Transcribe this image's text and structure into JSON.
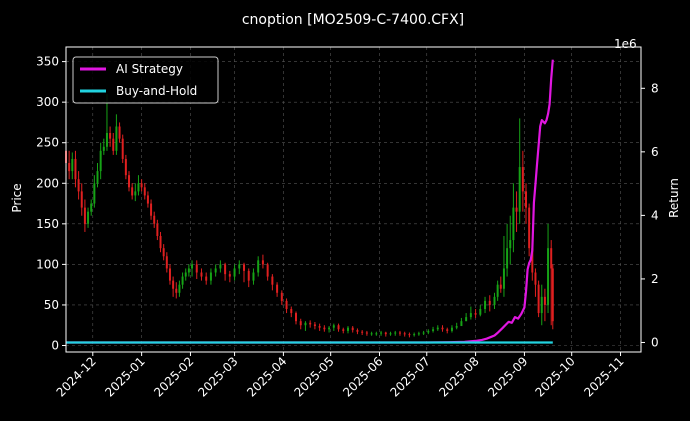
{
  "chart_data": {
    "type": "line",
    "title": "cnoption [MO2509-C-7400.CFX]",
    "xlabel": "",
    "ylabel": "Price",
    "y2label": "Return",
    "y2_offset_label": "1e6",
    "x_ticks": [
      "2024-12",
      "2025-01",
      "2025-02",
      "2025-03",
      "2025-04",
      "2025-05",
      "2025-06",
      "2025-07",
      "2025-08",
      "2025-09",
      "2025-10",
      "2025-11"
    ],
    "y_ticks": [
      0,
      50,
      100,
      150,
      200,
      250,
      300,
      350
    ],
    "y2_ticks": [
      0,
      2,
      4,
      6,
      8
    ],
    "xlim": [
      "2024-11-14",
      "2025-11-14"
    ],
    "ylim": [
      -8,
      368
    ],
    "y2lim": [
      -0.3,
      9.3
    ],
    "grid": true,
    "legend_position": "top-left",
    "background": "#000000",
    "series": [
      {
        "name": "AI Strategy",
        "color": "#e016e0",
        "axis": "right",
        "x": [
          "2024-11-14",
          "2025-07-01",
          "2025-07-15",
          "2025-07-25",
          "2025-08-01",
          "2025-08-05",
          "2025-08-08",
          "2025-08-11",
          "2025-08-13",
          "2025-08-15",
          "2025-08-18",
          "2025-08-20",
          "2025-08-22",
          "2025-08-24",
          "2025-08-26",
          "2025-08-28",
          "2025-08-30",
          "2025-09-01",
          "2025-09-02",
          "2025-09-03",
          "2025-09-04",
          "2025-09-05",
          "2025-09-06",
          "2025-09-07",
          "2025-09-08",
          "2025-09-09",
          "2025-09-10",
          "2025-09-11",
          "2025-09-12",
          "2025-09-14",
          "2025-09-15",
          "2025-09-16",
          "2025-09-17",
          "2025-09-18",
          "2025-09-19"
        ],
        "values": [
          0,
          0,
          0.01,
          0.02,
          0.05,
          0.08,
          0.12,
          0.18,
          0.22,
          0.3,
          0.45,
          0.55,
          0.65,
          0.62,
          0.8,
          0.75,
          0.9,
          1.1,
          1.6,
          2.3,
          2.5,
          2.6,
          2.9,
          4.4,
          5.0,
          5.6,
          6.2,
          6.8,
          7.0,
          6.9,
          7.0,
          7.2,
          7.5,
          8.3,
          8.9
        ]
      },
      {
        "name": "Buy-and-Hold",
        "color": "#22d3e0",
        "axis": "right",
        "x": [
          "2024-11-14",
          "2025-09-19"
        ],
        "values": [
          0,
          0
        ]
      }
    ],
    "price_candles": {
      "up_color": "#16a316",
      "down_color": "#e02020",
      "x": [
        "2024-11-14",
        "2024-11-16",
        "2024-11-18",
        "2024-11-20",
        "2024-11-22",
        "2024-11-24",
        "2024-11-26",
        "2024-11-28",
        "2024-11-30",
        "2024-12-02",
        "2024-12-04",
        "2024-12-06",
        "2024-12-08",
        "2024-12-10",
        "2024-12-12",
        "2024-12-14",
        "2024-12-16",
        "2024-12-18",
        "2024-12-20",
        "2024-12-22",
        "2024-12-24",
        "2024-12-26",
        "2024-12-28",
        "2024-12-30",
        "2025-01-01",
        "2025-01-03",
        "2025-01-05",
        "2025-01-07",
        "2025-01-09",
        "2025-01-11",
        "2025-01-13",
        "2025-01-15",
        "2025-01-17",
        "2025-01-19",
        "2025-01-21",
        "2025-01-23",
        "2025-01-25",
        "2025-01-27",
        "2025-01-29",
        "2025-01-31",
        "2025-02-02",
        "2025-02-05",
        "2025-02-08",
        "2025-02-11",
        "2025-02-14",
        "2025-02-17",
        "2025-02-20",
        "2025-02-23",
        "2025-02-26",
        "2025-03-01",
        "2025-03-04",
        "2025-03-07",
        "2025-03-10",
        "2025-03-13",
        "2025-03-16",
        "2025-03-19",
        "2025-03-22",
        "2025-03-25",
        "2025-03-28",
        "2025-03-31",
        "2025-04-03",
        "2025-04-06",
        "2025-04-09",
        "2025-04-12",
        "2025-04-15",
        "2025-04-18",
        "2025-04-21",
        "2025-04-24",
        "2025-04-27",
        "2025-04-30",
        "2025-05-03",
        "2025-05-06",
        "2025-05-09",
        "2025-05-12",
        "2025-05-15",
        "2025-05-18",
        "2025-05-21",
        "2025-05-24",
        "2025-05-27",
        "2025-05-30",
        "2025-06-02",
        "2025-06-05",
        "2025-06-08",
        "2025-06-11",
        "2025-06-14",
        "2025-06-17",
        "2025-06-20",
        "2025-06-23",
        "2025-06-26",
        "2025-06-29",
        "2025-07-02",
        "2025-07-05",
        "2025-07-08",
        "2025-07-11",
        "2025-07-14",
        "2025-07-17",
        "2025-07-20",
        "2025-07-23",
        "2025-07-26",
        "2025-07-29",
        "2025-08-01",
        "2025-08-04",
        "2025-08-07",
        "2025-08-10",
        "2025-08-13",
        "2025-08-15",
        "2025-08-17",
        "2025-08-19",
        "2025-08-21",
        "2025-08-23",
        "2025-08-25",
        "2025-08-27",
        "2025-08-29",
        "2025-08-31",
        "2025-09-02",
        "2025-09-04",
        "2025-09-06",
        "2025-09-08",
        "2025-09-10",
        "2025-09-12",
        "2025-09-14",
        "2025-09-16",
        "2025-09-18",
        "2025-09-19"
      ],
      "open": [
        240,
        225,
        215,
        230,
        205,
        190,
        170,
        150,
        165,
        175,
        200,
        215,
        240,
        245,
        262,
        255,
        240,
        270,
        255,
        230,
        210,
        195,
        185,
        190,
        200,
        195,
        185,
        175,
        160,
        150,
        135,
        120,
        110,
        95,
        80,
        70,
        65,
        75,
        85,
        90,
        95,
        100,
        90,
        85,
        80,
        90,
        95,
        100,
        88,
        85,
        95,
        100,
        92,
        80,
        90,
        105,
        100,
        85,
        75,
        65,
        55,
        45,
        40,
        30,
        25,
        28,
        26,
        24,
        22,
        20,
        22,
        25,
        20,
        18,
        22,
        19,
        17,
        16,
        15,
        15,
        15,
        16,
        14,
        15,
        16,
        15,
        14,
        13,
        14,
        15,
        16,
        18,
        20,
        22,
        20,
        18,
        22,
        24,
        30,
        35,
        40,
        38,
        45,
        55,
        50,
        60,
        75,
        70,
        95,
        120,
        130,
        170,
        165,
        220,
        190,
        170,
        120,
        90,
        75,
        40,
        60,
        50,
        120,
        95
      ],
      "close": [
        225,
        215,
        230,
        205,
        190,
        170,
        150,
        165,
        175,
        200,
        215,
        240,
        245,
        262,
        255,
        240,
        270,
        255,
        230,
        210,
        195,
        185,
        190,
        200,
        195,
        185,
        175,
        160,
        150,
        135,
        120,
        110,
        95,
        80,
        70,
        65,
        75,
        85,
        90,
        95,
        100,
        90,
        85,
        80,
        90,
        95,
        100,
        88,
        85,
        95,
        100,
        92,
        80,
        90,
        105,
        100,
        85,
        75,
        65,
        55,
        45,
        40,
        30,
        25,
        28,
        26,
        24,
        22,
        20,
        22,
        25,
        20,
        18,
        22,
        19,
        17,
        16,
        15,
        15,
        15,
        16,
        14,
        15,
        16,
        15,
        14,
        13,
        14,
        15,
        16,
        18,
        20,
        22,
        20,
        18,
        22,
        24,
        30,
        35,
        40,
        38,
        45,
        55,
        50,
        60,
        75,
        70,
        95,
        120,
        130,
        170,
        165,
        220,
        190,
        170,
        120,
        90,
        75,
        40,
        60,
        50,
        120,
        95,
        30
      ],
      "high": [
        260,
        240,
        238,
        240,
        215,
        200,
        180,
        170,
        180,
        210,
        225,
        250,
        255,
        310,
        270,
        262,
        285,
        275,
        260,
        235,
        215,
        200,
        200,
        210,
        205,
        200,
        190,
        180,
        165,
        155,
        140,
        125,
        115,
        100,
        85,
        78,
        80,
        90,
        95,
        100,
        105,
        105,
        95,
        90,
        95,
        100,
        105,
        102,
        92,
        100,
        105,
        102,
        95,
        95,
        110,
        112,
        102,
        88,
        78,
        68,
        58,
        48,
        42,
        33,
        30,
        31,
        29,
        27,
        25,
        24,
        27,
        27,
        22,
        24,
        24,
        21,
        19,
        18,
        17,
        17,
        18,
        17,
        17,
        18,
        18,
        17,
        16,
        16,
        17,
        18,
        20,
        23,
        25,
        25,
        22,
        25,
        28,
        34,
        40,
        48,
        45,
        50,
        60,
        62,
        65,
        80,
        85,
        135,
        150,
        160,
        200,
        190,
        280,
        240,
        200,
        175,
        130,
        95,
        80,
        75,
        70,
        150,
        130,
        100
      ],
      "low": [
        215,
        205,
        205,
        195,
        180,
        160,
        140,
        145,
        160,
        170,
        195,
        205,
        235,
        240,
        245,
        235,
        235,
        250,
        225,
        205,
        190,
        180,
        178,
        185,
        190,
        180,
        170,
        155,
        145,
        130,
        115,
        105,
        90,
        75,
        60,
        58,
        60,
        70,
        80,
        85,
        85,
        82,
        80,
        75,
        75,
        85,
        90,
        80,
        78,
        80,
        88,
        78,
        72,
        75,
        85,
        95,
        80,
        68,
        60,
        50,
        40,
        35,
        26,
        20,
        18,
        22,
        20,
        18,
        17,
        16,
        18,
        17,
        15,
        15,
        16,
        14,
        13,
        12,
        12,
        12,
        12,
        11,
        12,
        12,
        12,
        11,
        10,
        11,
        12,
        13,
        14,
        16,
        18,
        17,
        15,
        16,
        20,
        26,
        30,
        32,
        34,
        36,
        40,
        42,
        45,
        55,
        65,
        60,
        85,
        100,
        115,
        140,
        150,
        165,
        150,
        110,
        80,
        60,
        35,
        25,
        30,
        40,
        25,
        20
      ]
    }
  }
}
